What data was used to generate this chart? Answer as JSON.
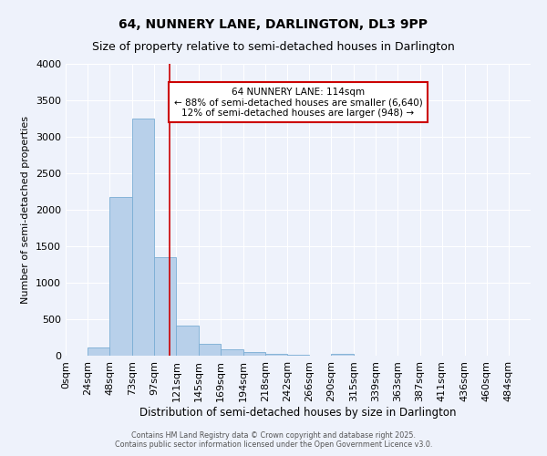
{
  "title": "64, NUNNERY LANE, DARLINGTON, DL3 9PP",
  "subtitle": "Size of property relative to semi-detached houses in Darlington",
  "ylabel": "Number of semi-detached properties",
  "xlabel": "Distribution of semi-detached houses by size in Darlington",
  "footnote1": "Contains HM Land Registry data © Crown copyright and database right 2025.",
  "footnote2": "Contains public sector information licensed under the Open Government Licence v3.0.",
  "bar_edges": [
    0,
    24,
    48,
    73,
    97,
    121,
    145,
    169,
    194,
    218,
    242,
    266,
    290,
    315,
    339,
    363,
    387,
    411,
    436,
    460,
    484,
    508
  ],
  "bar_heights": [
    0,
    110,
    2170,
    3250,
    1350,
    410,
    160,
    90,
    45,
    25,
    15,
    5,
    30,
    0,
    0,
    0,
    0,
    0,
    0,
    0,
    0
  ],
  "bar_color": "#b8d0ea",
  "bar_edgecolor": "#7aadd4",
  "vline_x": 114,
  "vline_color": "#cc0000",
  "annotation_line1": "64 NUNNERY LANE: 114sqm",
  "annotation_line2": "← 88% of semi-detached houses are smaller (6,640)",
  "annotation_line3": "12% of semi-detached houses are larger (948) →",
  "annotation_box_edgecolor": "#cc0000",
  "annotation_box_facecolor": "#ffffff",
  "ylim": [
    0,
    4000
  ],
  "xlim": [
    0,
    508
  ],
  "background_color": "#eef2fb",
  "grid_color": "#ffffff",
  "title_fontsize": 10,
  "subtitle_fontsize": 9,
  "tick_labels": [
    "0sqm",
    "24sqm",
    "48sqm",
    "73sqm",
    "97sqm",
    "121sqm",
    "145sqm",
    "169sqm",
    "194sqm",
    "218sqm",
    "242sqm",
    "266sqm",
    "290sqm",
    "315sqm",
    "339sqm",
    "363sqm",
    "387sqm",
    "411sqm",
    "436sqm",
    "460sqm",
    "484sqm"
  ],
  "yticks": [
    0,
    500,
    1000,
    1500,
    2000,
    2500,
    3000,
    3500,
    4000
  ]
}
